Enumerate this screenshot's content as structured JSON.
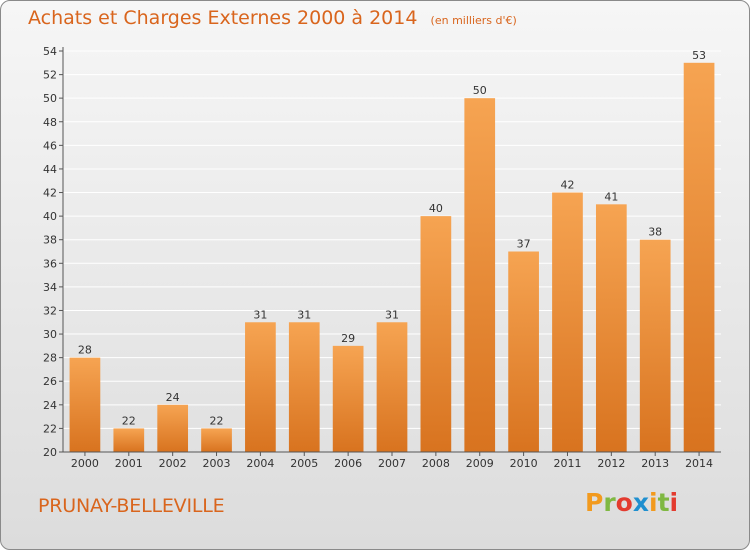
{
  "chart_data": {
    "type": "bar",
    "title": "Achats et Charges Externes 2000 à 2014",
    "subtitle": "(en milliers d'€)",
    "categories": [
      "2000",
      "2001",
      "2002",
      "2003",
      "2004",
      "2005",
      "2006",
      "2007",
      "2008",
      "2009",
      "2010",
      "2011",
      "2012",
      "2013",
      "2014"
    ],
    "values": [
      28,
      22,
      24,
      22,
      31,
      31,
      29,
      31,
      40,
      50,
      37,
      42,
      41,
      38,
      53
    ],
    "value_labels": [
      "28",
      "22",
      "24",
      "22",
      "31",
      "31",
      "29",
      "31",
      "40",
      "50",
      "37",
      "42",
      "41",
      "38",
      "53"
    ],
    "ylim": [
      20,
      54
    ],
    "yticks": [
      20,
      22,
      24,
      26,
      28,
      30,
      32,
      34,
      36,
      38,
      40,
      42,
      44,
      46,
      48,
      50,
      52,
      54
    ],
    "xlabel": "",
    "ylabel": "",
    "grid": "horizontal",
    "bar_color_top": "#f6a452",
    "bar_color_bottom": "#d8731f",
    "grid_color": "#ffffff"
  },
  "footer": {
    "city": "PRUNAY-BELLEVILLE",
    "logo_text": "Proxiti",
    "logo_colors": [
      "#f29a1e",
      "#7fb842",
      "#e33b2f",
      "#1f8fcf",
      "#f29a1e",
      "#7fb842",
      "#e33b2f"
    ]
  }
}
